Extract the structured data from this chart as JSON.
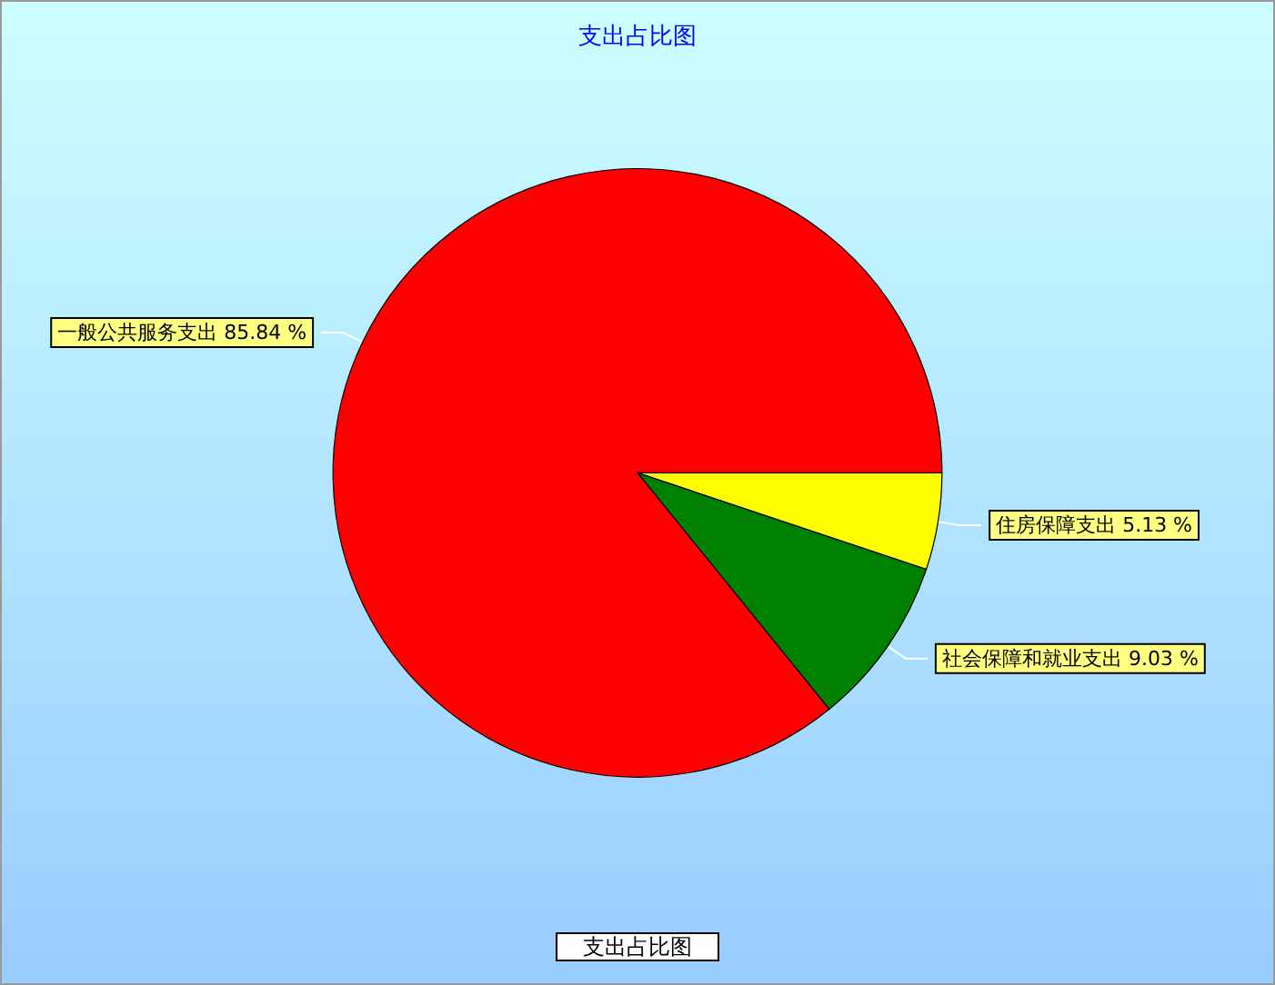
{
  "chart_data": {
    "type": "pie",
    "title": "支出占比图",
    "categories": [
      "住房保障支出",
      "社会保障和就业支出",
      "一般公共服务支出"
    ],
    "values": [
      5.13,
      9.03,
      85.84
    ],
    "colors": [
      "#ffff00",
      "#008000",
      "#ff0000"
    ],
    "value_labels": [
      "5.13 %",
      "9.03 %",
      "85.84 %"
    ],
    "annotations": [
      "支出占比图"
    ]
  }
}
